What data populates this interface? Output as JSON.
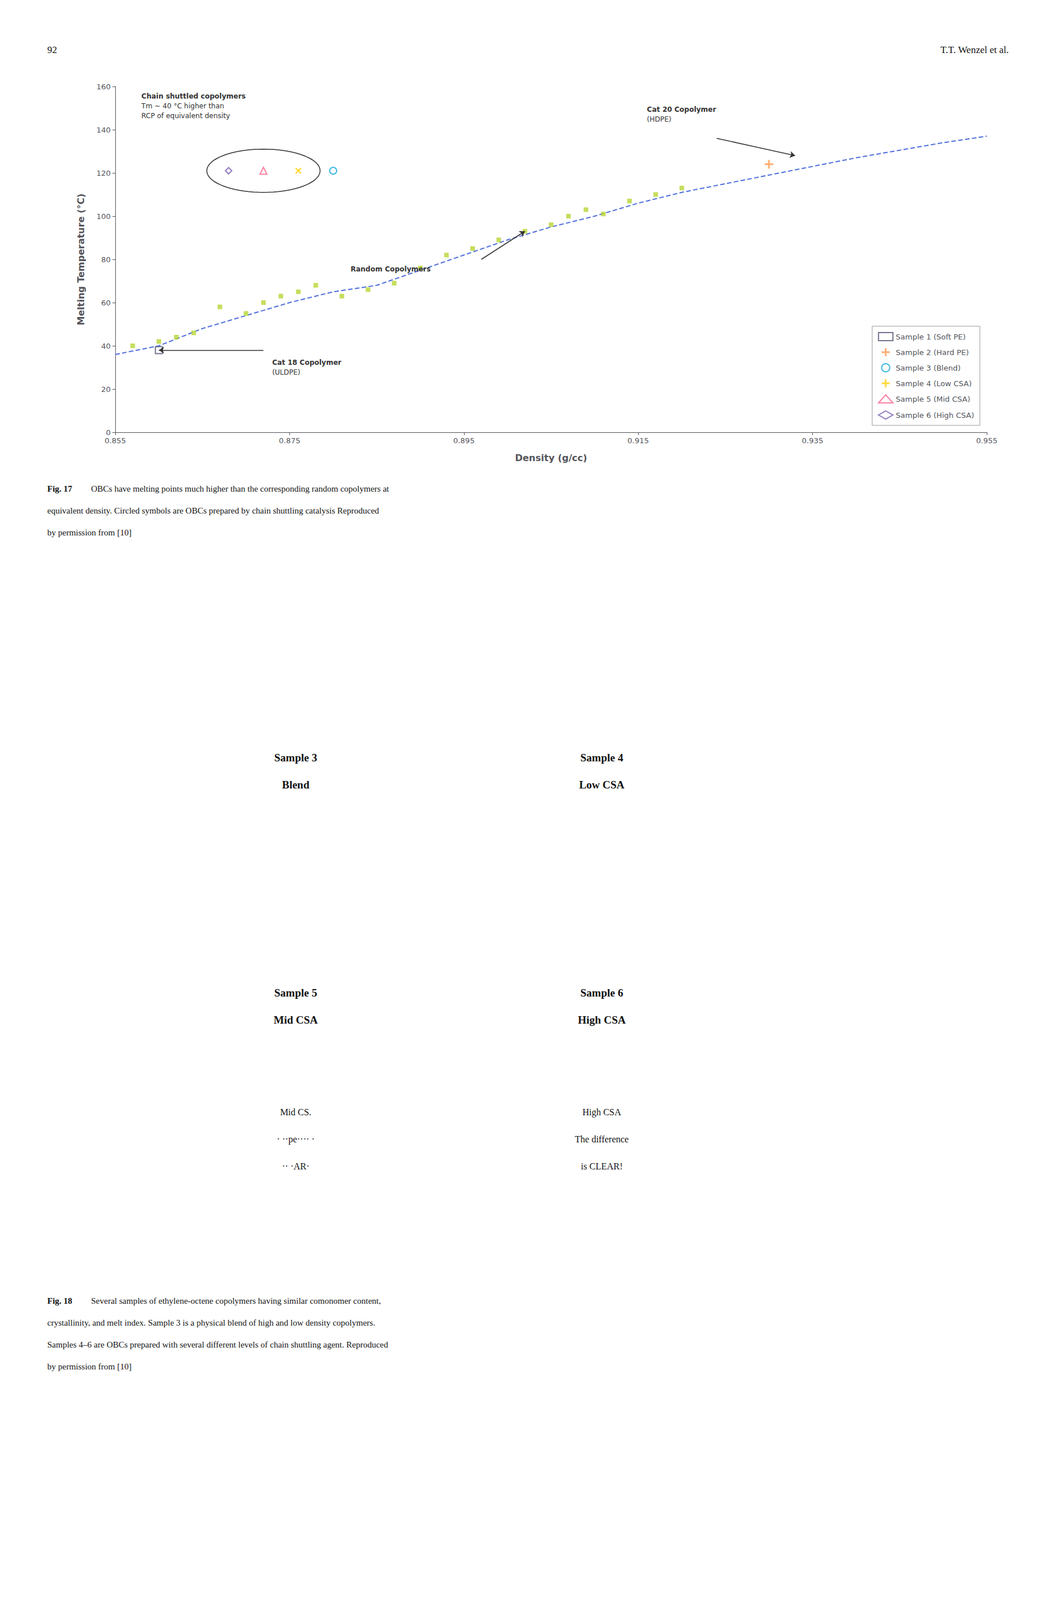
{
  "page": {
    "page_number": "92",
    "header_right": "T.T. Wenzel et al."
  },
  "chart_data": {
    "type": "scatter",
    "xlabel": "Density (g/cc)",
    "ylabel": "Melting Temperature (°C)",
    "xlim": [
      0.855,
      0.955
    ],
    "ylim": [
      0,
      160
    ],
    "xticks": [
      0.855,
      0.875,
      0.895,
      0.915,
      0.935,
      0.955
    ],
    "yticks": [
      0,
      20,
      40,
      60,
      80,
      100,
      120,
      140,
      160
    ],
    "grid": false,
    "legend": "lower right",
    "series": [
      {
        "type": "line",
        "line_style": "dashed",
        "marker": "none",
        "x": [
          0.855,
          0.86,
          0.865,
          0.87,
          0.875,
          0.88,
          0.885,
          0.89,
          0.895,
          0.9,
          0.905,
          0.91,
          0.915,
          0.92,
          0.93,
          0.94,
          0.95,
          0.955
        ],
        "values": [
          36,
          40,
          48,
          54,
          60,
          65,
          68,
          75,
          82,
          89,
          95,
          100,
          106,
          111,
          119,
          127,
          134,
          137
        ]
      },
      {
        "type": "scatter",
        "marker": "square",
        "x": [
          0.857,
          0.86,
          0.862,
          0.864,
          0.867,
          0.87,
          0.872,
          0.874,
          0.876,
          0.878,
          0.881,
          0.884,
          0.887,
          0.89,
          0.893,
          0.896,
          0.899,
          0.902,
          0.905,
          0.907,
          0.909,
          0.911,
          0.914,
          0.917,
          0.92
        ],
        "values": [
          40,
          42,
          44,
          46,
          58,
          55,
          60,
          63,
          65,
          68,
          63,
          66,
          69,
          76,
          82,
          85,
          89,
          93,
          96,
          100,
          103,
          101,
          107,
          110,
          113
        ]
      },
      {
        "name": "Sample 1 (Soft PE)",
        "type": "scatter",
        "marker": "square-open",
        "x": [
          0.86
        ],
        "values": [
          38
        ]
      },
      {
        "name": "Sample 2 (Hard PE)",
        "type": "scatter",
        "marker": "plus",
        "x": [
          0.93
        ],
        "values": [
          124
        ]
      },
      {
        "name": "Sample 3 (Blend)",
        "type": "scatter",
        "marker": "circle-open",
        "x": [
          0.88
        ],
        "values": [
          121
        ]
      },
      {
        "name": "Sample 4 (Low CSA)",
        "type": "scatter",
        "marker": "x",
        "x": [
          0.876
        ],
        "values": [
          121
        ]
      },
      {
        "name": "Sample 5 (Mid CSA)",
        "type": "scatter",
        "marker": "triangle-open",
        "x": [
          0.872
        ],
        "values": [
          121
        ]
      },
      {
        "name": "Sample 6 (High CSA)",
        "type": "scatter",
        "marker": "diamond-open",
        "x": [
          0.868
        ],
        "values": [
          121
        ]
      }
    ],
    "circled": {
      "center": [
        0.872,
        121
      ],
      "width": 0.013,
      "height": 20
    },
    "annotations": [
      {
        "text": [
          "Chain shuttled copolymers",
          "Tm ~ 40 °C higher than",
          "RCP of equivalent density"
        ],
        "x": 0.858,
        "y": 157
      },
      {
        "text": [
          "Cat 20 Copolymer",
          "(HDPE)"
        ],
        "x": 0.916,
        "y": 151,
        "arrow_from": [
          0.924,
          136
        ],
        "arrow_to": [
          0.933,
          128
        ]
      },
      {
        "text": [
          "Cat 18 Copolymer",
          "(ULDPE)"
        ],
        "x": 0.873,
        "y": 34,
        "arrow_from": [
          0.872,
          38
        ],
        "arrow_to": [
          0.86,
          38
        ]
      },
      {
        "text": [
          "Random Copolymers"
        ],
        "x": 0.882,
        "y": 77,
        "arrow_from": [
          0.897,
          80
        ],
        "arrow_to": [
          0.902,
          93
        ]
      }
    ]
  },
  "captions": [
    {
      "label": "Fig. 17",
      "lines": [
        "OBCs have melting points much higher than the corresponding random copolymers at",
        "equivalent density. Circled symbols are OBCs prepared by chain shuttling catalysis Reproduced",
        "by permission from [10]"
      ]
    },
    {
      "label": "Fig. 18",
      "lines": [
        "Several samples of ethylene-octene copolymers having similar comonomer content,",
        "crystallinity, and melt index. Sample 3 is a physical blend of high and low density copolymers.",
        "Samples 4–6 are OBCs prepared with several different levels of chain shuttling agent. Reproduced",
        "by permission from [10]"
      ]
    }
  ],
  "panels": [
    [
      [
        "Sample 3",
        "Blend"
      ],
      [
        "Sample 4",
        "Low CSA"
      ]
    ],
    [
      [
        "Sample 5",
        "Mid CSA"
      ],
      [
        "Sample 6",
        "High CSA"
      ]
    ],
    [
      [
        "Mid CS.",
        "· ··pe···· ·",
        "·· ·AR·"
      ],
      [
        "High CSA",
        "The difference",
        "is CLEAR!"
      ]
    ]
  ]
}
